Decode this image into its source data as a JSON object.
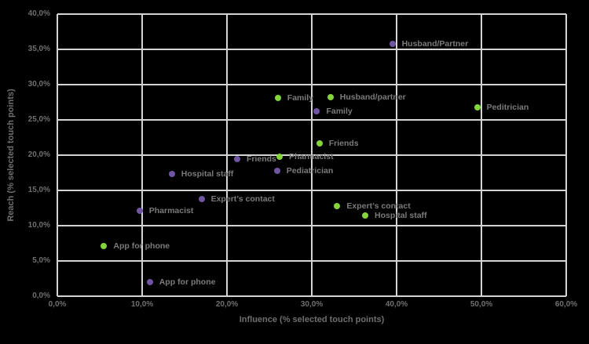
{
  "page": {
    "background": "#000000"
  },
  "chart_data": {
    "type": "scatter",
    "title": "",
    "xlabel": "Influence (% selected touch points)",
    "ylabel": "Reach (% selected touch points)",
    "xlim": [
      0,
      60
    ],
    "ylim": [
      0,
      40
    ],
    "x_ticks": [
      0,
      10,
      20,
      30,
      40,
      50,
      60
    ],
    "y_ticks": [
      0,
      5,
      10,
      15,
      20,
      25,
      30,
      35,
      40
    ],
    "x_tick_labels": [
      "0,0%",
      "10,0%",
      "20,0%",
      "30,0%",
      "40,0%",
      "50,0%",
      "60,0%"
    ],
    "y_tick_labels": [
      "0,0%",
      "5,0%",
      "10,0%",
      "15,0%",
      "20,0%",
      "25,0%",
      "30,0%",
      "35,0%",
      "40,0%"
    ],
    "grid": true,
    "legend": "none",
    "colors": {
      "background": "#000000",
      "gridline": "#D4D4D4",
      "tick_text": "#6F6F6F",
      "point_label_text": "#7B7B7B",
      "series_green": "#84D43C",
      "series_purple": "#6F55A2"
    },
    "series": [
      {
        "name": "green",
        "color": "#84D43C",
        "points": [
          {
            "label": "Family",
            "x": 26.0,
            "y": 28.1
          },
          {
            "label": "Husband/partner",
            "x": 32.2,
            "y": 28.2
          },
          {
            "label": "Peditrician",
            "x": 49.5,
            "y": 26.8
          },
          {
            "label": "Friends",
            "x": 30.9,
            "y": 21.7
          },
          {
            "label": "Pharmacist",
            "x": 26.2,
            "y": 19.8
          },
          {
            "label": "Expert’s contact",
            "x": 33.0,
            "y": 12.8
          },
          {
            "label": "Hospital staff",
            "x": 36.3,
            "y": 11.5
          },
          {
            "label": "App for phone",
            "x": 5.5,
            "y": 7.1
          }
        ]
      },
      {
        "name": "purple",
        "color": "#6F55A2",
        "points": [
          {
            "label": "Husband/Partner",
            "x": 39.5,
            "y": 35.8
          },
          {
            "label": "Family",
            "x": 30.6,
            "y": 26.2
          },
          {
            "label": "Friends",
            "x": 21.2,
            "y": 19.4
          },
          {
            "label": "Pediatrician",
            "x": 25.9,
            "y": 17.8
          },
          {
            "label": "Hospital staff",
            "x": 13.5,
            "y": 17.3
          },
          {
            "label": "Expert’s contact",
            "x": 17.0,
            "y": 13.8
          },
          {
            "label": "Pharmacist",
            "x": 9.7,
            "y": 12.1
          },
          {
            "label": "App for phone",
            "x": 10.9,
            "y": 2.0
          }
        ]
      }
    ]
  }
}
